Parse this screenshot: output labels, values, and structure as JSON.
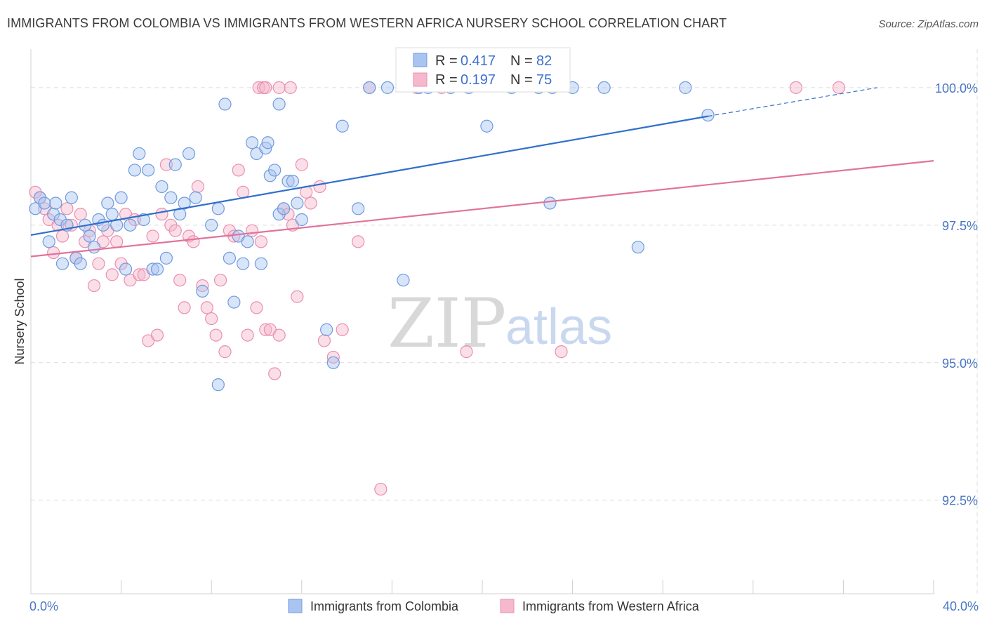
{
  "title": "IMMIGRANTS FROM COLOMBIA VS IMMIGRANTS FROM WESTERN AFRICA NURSERY SCHOOL CORRELATION CHART",
  "source": "Source: ZipAtlas.com",
  "watermark": {
    "zip": "ZIP",
    "atlas": "atlas"
  },
  "colors": {
    "blue_fill": "#a9c4f0",
    "blue_stroke": "#6f9be0",
    "blue_line": "#2f6fcc",
    "pink_fill": "#f5b8cc",
    "pink_stroke": "#eb8fae",
    "pink_line": "#e0739c",
    "grid": "#dcdcdc",
    "tick_text": "#4a76c4"
  },
  "stats": {
    "r_label": "R =",
    "n_label": "N =",
    "colombia": {
      "r": "0.417",
      "n": "82"
    },
    "western_africa": {
      "r": "0.197",
      "n": "75"
    }
  },
  "chart_data": {
    "type": "scatter",
    "title": "IMMIGRANTS FROM COLOMBIA VS IMMIGRANTS FROM WESTERN AFRICA NURSERY SCHOOL CORRELATION CHART",
    "xlabel": "",
    "ylabel": "Nursery School",
    "xlim": [
      0,
      40
    ],
    "ylim": [
      90.8,
      100.7
    ],
    "x_tick_labels": [
      "0.0%",
      "40.0%"
    ],
    "y_ticks": [
      92.5,
      95.0,
      97.5,
      100.0
    ],
    "y_tick_labels": [
      "92.5%",
      "95.0%",
      "97.5%",
      "100.0%"
    ],
    "legend": [
      "Immigrants from Colombia",
      "Immigrants from Western Africa"
    ],
    "series": [
      {
        "name": "Immigrants from Colombia",
        "color": "#6f9be0",
        "trend": {
          "x0": 0.0,
          "y0": 97.32,
          "x1": 30.0,
          "y1": 99.48,
          "dash_to_x": 37.5,
          "dash_to_y": 100.0
        },
        "points": [
          [
            0.2,
            97.8
          ],
          [
            0.4,
            98.0
          ],
          [
            0.6,
            97.9
          ],
          [
            0.8,
            97.2
          ],
          [
            1.0,
            97.7
          ],
          [
            1.1,
            97.9
          ],
          [
            1.3,
            97.6
          ],
          [
            1.4,
            96.8
          ],
          [
            1.6,
            97.5
          ],
          [
            1.8,
            98.0
          ],
          [
            2.0,
            96.9
          ],
          [
            2.2,
            96.8
          ],
          [
            2.4,
            97.5
          ],
          [
            2.6,
            97.3
          ],
          [
            2.8,
            97.1
          ],
          [
            3.0,
            97.6
          ],
          [
            3.2,
            97.5
          ],
          [
            3.4,
            97.9
          ],
          [
            3.6,
            97.7
          ],
          [
            3.8,
            97.5
          ],
          [
            4.0,
            98.0
          ],
          [
            4.2,
            96.7
          ],
          [
            4.4,
            97.5
          ],
          [
            4.6,
            98.5
          ],
          [
            4.8,
            98.8
          ],
          [
            5.0,
            97.6
          ],
          [
            5.2,
            98.5
          ],
          [
            5.4,
            96.7
          ],
          [
            5.6,
            96.7
          ],
          [
            5.8,
            98.2
          ],
          [
            6.0,
            96.9
          ],
          [
            6.2,
            98.0
          ],
          [
            6.4,
            98.6
          ],
          [
            6.6,
            97.7
          ],
          [
            6.8,
            97.9
          ],
          [
            7.0,
            98.8
          ],
          [
            7.3,
            98.0
          ],
          [
            7.6,
            96.3
          ],
          [
            8.0,
            97.5
          ],
          [
            8.3,
            97.8
          ],
          [
            8.6,
            99.7
          ],
          [
            8.8,
            96.9
          ],
          [
            9.0,
            96.1
          ],
          [
            9.2,
            97.3
          ],
          [
            9.4,
            96.8
          ],
          [
            9.6,
            97.2
          ],
          [
            9.8,
            99.0
          ],
          [
            10.0,
            98.8
          ],
          [
            10.2,
            96.8
          ],
          [
            10.4,
            98.9
          ],
          [
            10.6,
            98.4
          ],
          [
            10.8,
            98.5
          ],
          [
            11.0,
            97.7
          ],
          [
            11.2,
            97.8
          ],
          [
            11.4,
            98.3
          ],
          [
            11.6,
            98.3
          ],
          [
            11.8,
            97.9
          ],
          [
            12.0,
            97.6
          ],
          [
            10.5,
            99.0
          ],
          [
            11.0,
            99.7
          ],
          [
            13.1,
            95.6
          ],
          [
            13.4,
            95.0
          ],
          [
            13.8,
            99.3
          ],
          [
            14.5,
            97.8
          ],
          [
            15.0,
            100.0
          ],
          [
            15.8,
            100.0
          ],
          [
            16.5,
            96.5
          ],
          [
            17.2,
            100.0
          ],
          [
            18.6,
            100.0
          ],
          [
            8.3,
            94.6
          ],
          [
            19.4,
            100.0
          ],
          [
            20.2,
            99.3
          ],
          [
            21.3,
            100.0
          ],
          [
            22.5,
            100.0
          ],
          [
            23.1,
            100.0
          ],
          [
            24.0,
            100.0
          ],
          [
            25.4,
            100.0
          ],
          [
            23.0,
            97.9
          ],
          [
            26.9,
            97.1
          ],
          [
            29.0,
            100.0
          ],
          [
            30.0,
            99.5
          ],
          [
            17.6,
            100.0
          ]
        ]
      },
      {
        "name": "Immigrants from Western Africa",
        "color": "#eb8fae",
        "trend": {
          "x0": 0.0,
          "y0": 96.93,
          "x1": 40.0,
          "y1": 98.67
        },
        "points": [
          [
            0.2,
            98.1
          ],
          [
            0.4,
            98.0
          ],
          [
            0.6,
            97.8
          ],
          [
            0.8,
            97.6
          ],
          [
            1.0,
            97.0
          ],
          [
            1.2,
            97.5
          ],
          [
            1.4,
            97.3
          ],
          [
            1.6,
            97.8
          ],
          [
            1.8,
            97.5
          ],
          [
            2.0,
            96.9
          ],
          [
            2.2,
            97.7
          ],
          [
            2.4,
            97.2
          ],
          [
            2.6,
            97.4
          ],
          [
            2.8,
            96.4
          ],
          [
            3.0,
            96.8
          ],
          [
            3.2,
            97.2
          ],
          [
            3.4,
            97.4
          ],
          [
            3.6,
            96.6
          ],
          [
            3.8,
            97.2
          ],
          [
            4.0,
            96.8
          ],
          [
            4.2,
            97.7
          ],
          [
            4.4,
            96.5
          ],
          [
            4.6,
            97.6
          ],
          [
            4.8,
            96.6
          ],
          [
            5.0,
            96.6
          ],
          [
            5.2,
            95.4
          ],
          [
            5.4,
            97.3
          ],
          [
            5.6,
            95.5
          ],
          [
            5.8,
            97.7
          ],
          [
            6.0,
            98.6
          ],
          [
            6.2,
            97.5
          ],
          [
            6.4,
            97.4
          ],
          [
            6.6,
            96.5
          ],
          [
            6.8,
            96.0
          ],
          [
            7.0,
            97.3
          ],
          [
            7.2,
            97.2
          ],
          [
            7.4,
            98.2
          ],
          [
            7.6,
            96.4
          ],
          [
            7.8,
            96.0
          ],
          [
            8.0,
            95.8
          ],
          [
            8.2,
            95.5
          ],
          [
            8.4,
            96.5
          ],
          [
            8.6,
            95.2
          ],
          [
            8.8,
            97.4
          ],
          [
            9.0,
            97.3
          ],
          [
            9.2,
            98.5
          ],
          [
            9.4,
            98.1
          ],
          [
            9.6,
            95.5
          ],
          [
            9.8,
            97.4
          ],
          [
            10.0,
            96.0
          ],
          [
            10.2,
            97.2
          ],
          [
            10.4,
            95.6
          ],
          [
            10.6,
            95.6
          ],
          [
            10.8,
            94.8
          ],
          [
            11.0,
            95.5
          ],
          [
            11.2,
            97.8
          ],
          [
            11.4,
            97.7
          ],
          [
            11.6,
            97.5
          ],
          [
            11.8,
            96.2
          ],
          [
            12.0,
            98.6
          ],
          [
            12.2,
            98.1
          ],
          [
            12.4,
            97.9
          ],
          [
            12.8,
            98.2
          ],
          [
            13.0,
            95.4
          ],
          [
            13.4,
            95.1
          ],
          [
            13.8,
            95.6
          ],
          [
            10.1,
            100.0
          ],
          [
            10.3,
            100.0
          ],
          [
            11.0,
            100.0
          ],
          [
            11.5,
            100.0
          ],
          [
            14.5,
            97.2
          ],
          [
            15.0,
            100.0
          ],
          [
            19.3,
            95.2
          ],
          [
            23.5,
            95.2
          ],
          [
            35.8,
            100.0
          ]
        ]
      }
    ]
  },
  "extra_points": {
    "western_africa_outliers": [
      [
        15.5,
        92.7
      ],
      [
        10.4,
        100.0
      ],
      [
        17.1,
        100.0
      ],
      [
        18.2,
        100.0
      ],
      [
        33.9,
        100.0
      ]
    ]
  }
}
